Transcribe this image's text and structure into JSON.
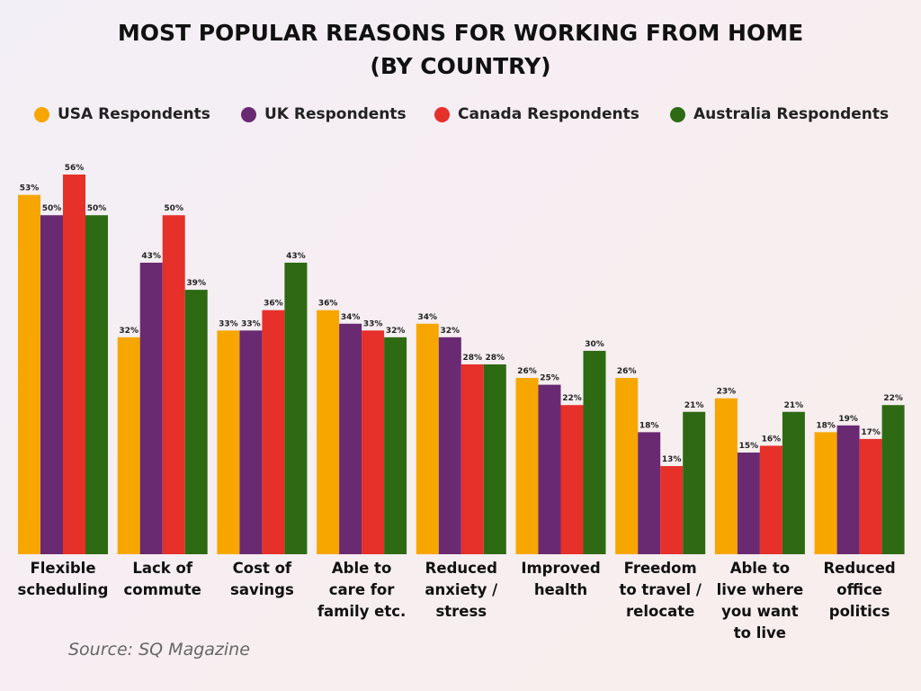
{
  "chart_data": {
    "type": "bar",
    "title": "MOST POPULAR REASONS FOR WORKING FROM HOME (BY COUNTRY)",
    "categories": [
      "Flexible scheduling",
      "Lack of commute",
      "Cost of savings",
      "Able to care for family etc.",
      "Reduced anxiety / stress",
      "Improved health",
      "Freedom to travel / relocate",
      "Able to live where you want to live",
      "Reduced office politics"
    ],
    "series": [
      {
        "name": "USA Respondents",
        "color": "#f7a600",
        "values": [
          53,
          32,
          33,
          36,
          34,
          26,
          26,
          23,
          18
        ],
        "value_labels": [
          "53%",
          "32%",
          "33%",
          "36%",
          "34%",
          "26%",
          "26%",
          "23%",
          "18%"
        ]
      },
      {
        "name": "UK Respondents",
        "color": "#6a2a72",
        "values": [
          50,
          43,
          33,
          34,
          32,
          25,
          18,
          15,
          19
        ],
        "value_labels": [
          "50%",
          "43%",
          "33%",
          "34%",
          "32%",
          "25%",
          "18%",
          "15%",
          "19%"
        ]
      },
      {
        "name": "Canada Respondents",
        "color": "#e6302a",
        "values": [
          56,
          50,
          36,
          33,
          28,
          22,
          13,
          16,
          17
        ],
        "value_labels": [
          "56%",
          "50%",
          "36%",
          "33%",
          "28%",
          "22%",
          "13%",
          "16%",
          "17%"
        ]
      },
      {
        "name": "Australia Respondents",
        "color": "#2e6a14",
        "values": [
          50,
          39,
          43,
          32,
          28,
          30,
          21,
          21,
          22
        ],
        "value_labels": [
          "50%",
          "39%",
          "43%",
          "32%",
          "28%",
          "30%",
          "21%",
          "21%",
          "22%"
        ]
      }
    ],
    "source": "Source: SQ Magazine"
  }
}
